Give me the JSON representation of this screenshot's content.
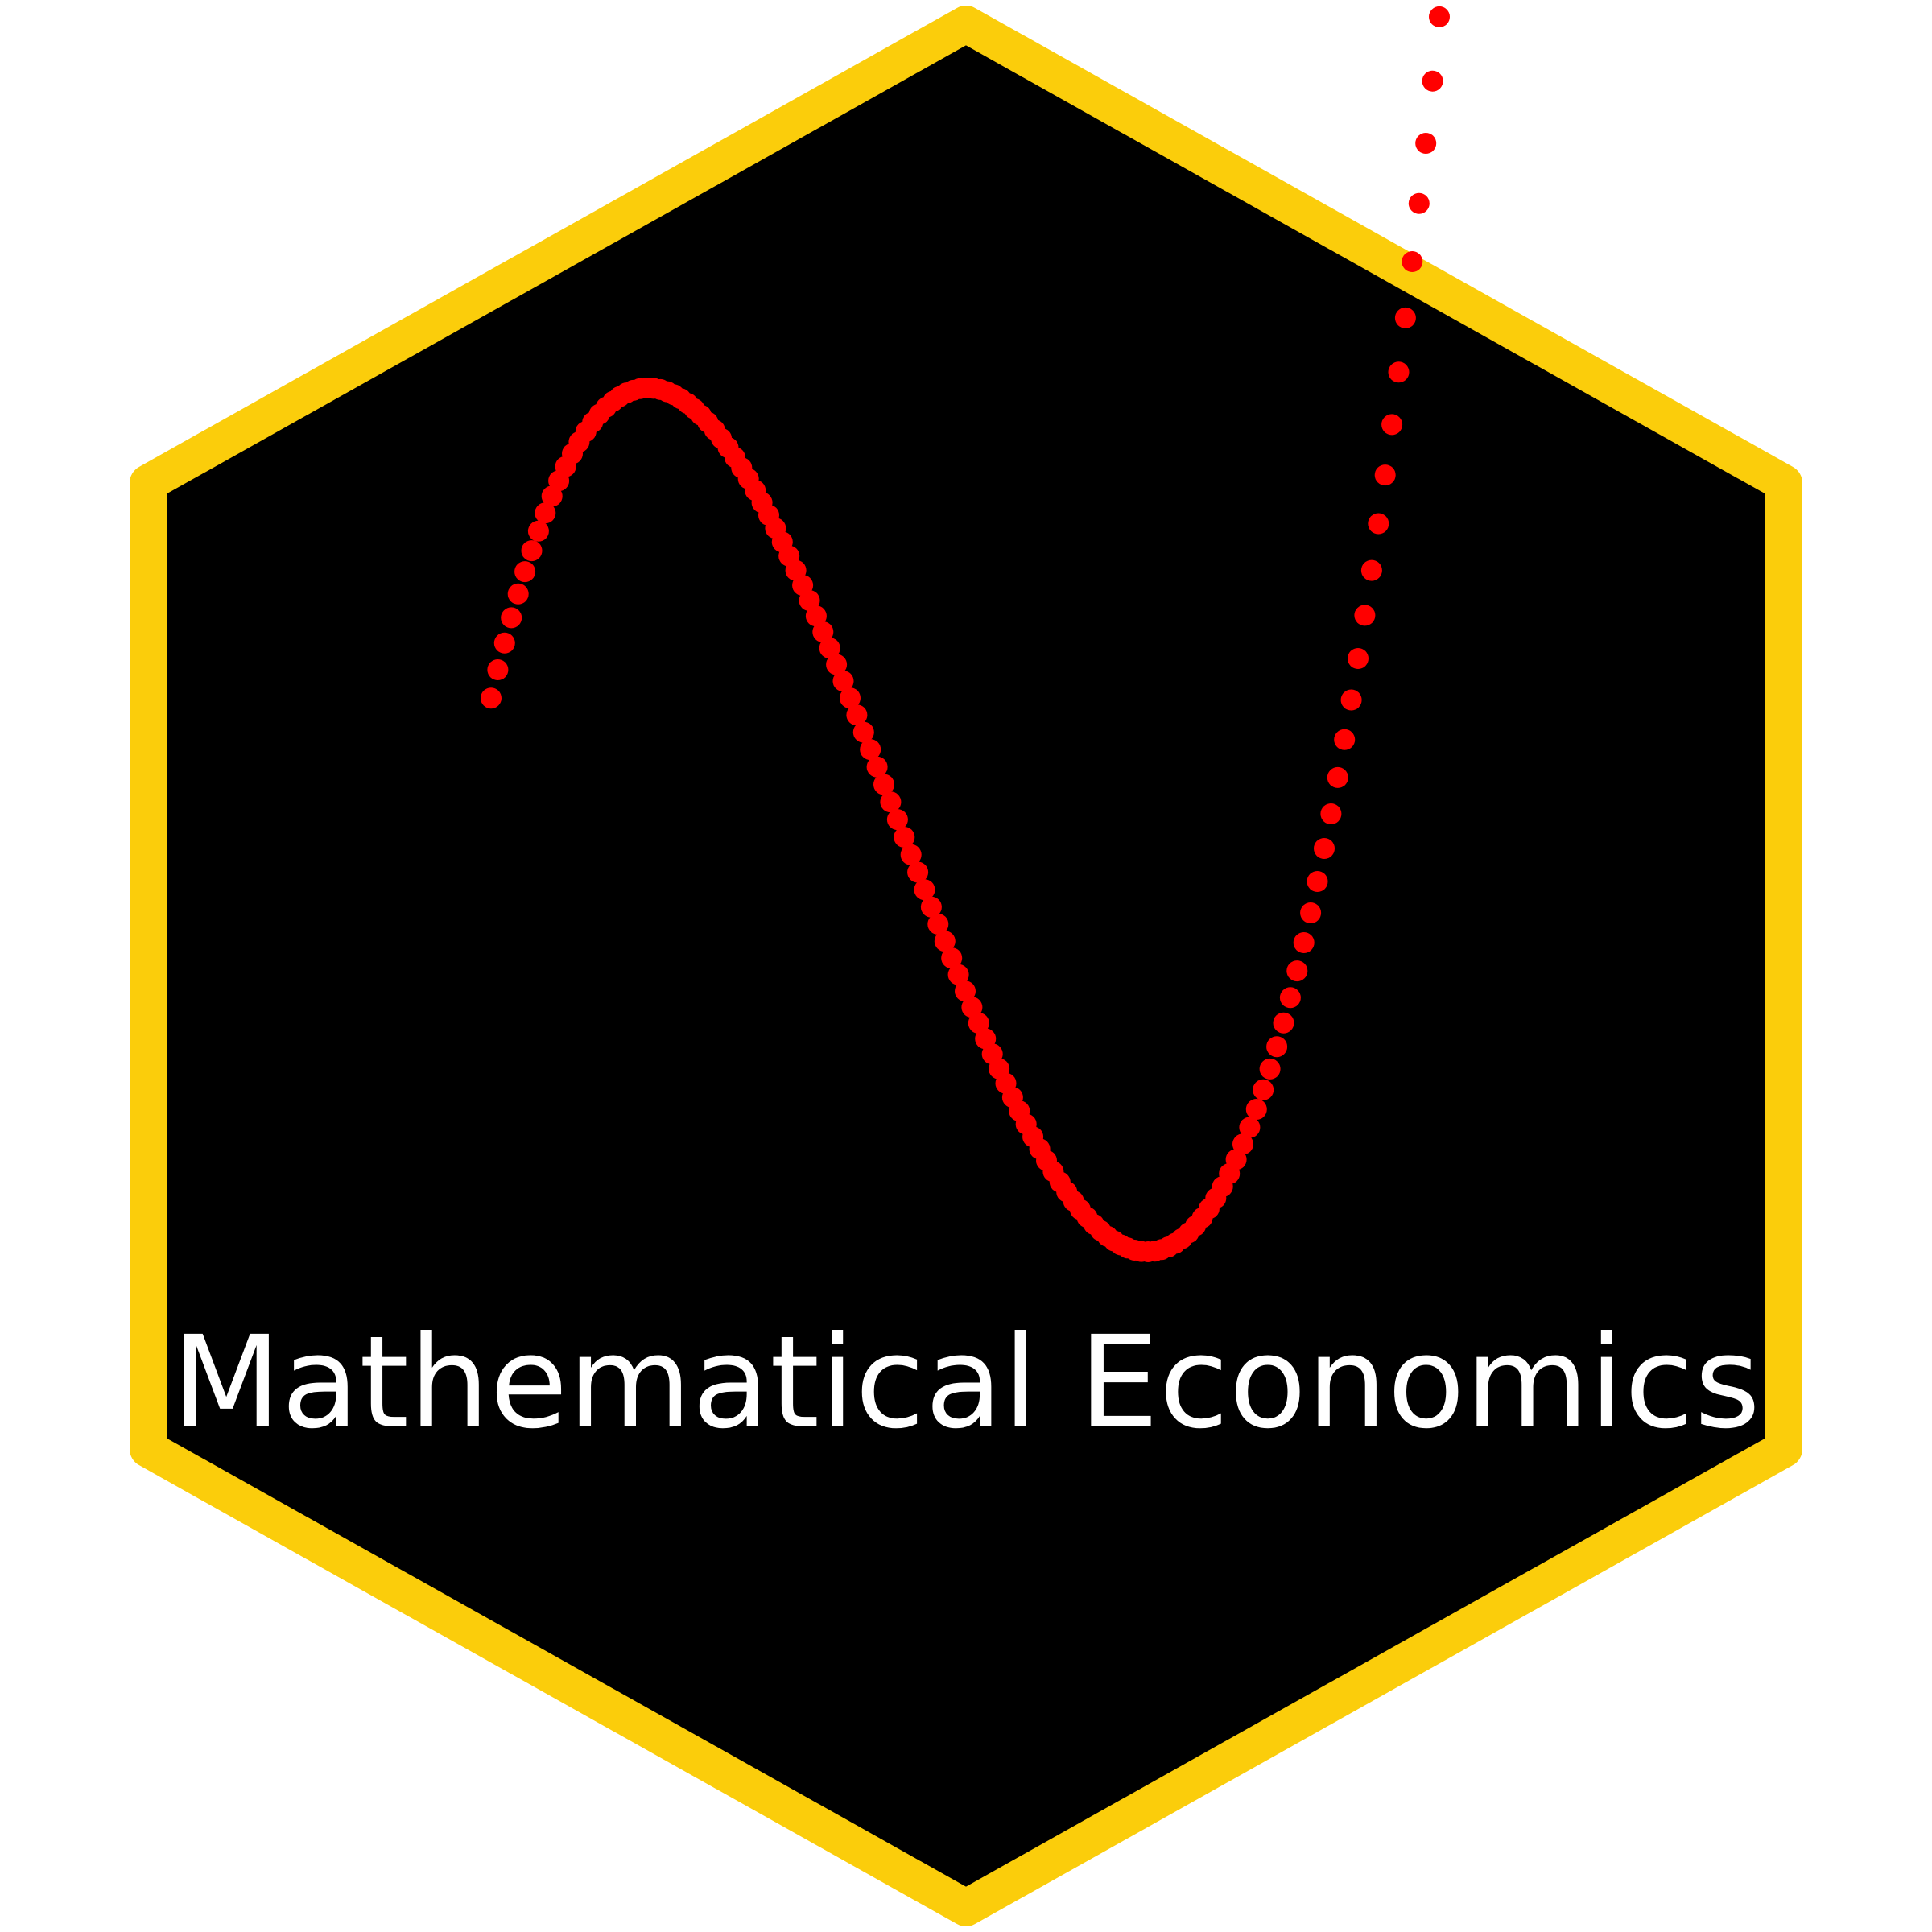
{
  "sticker": {
    "title": "Mathematical Economics",
    "colors": {
      "border": "#FBCD0B",
      "fill": "#000000",
      "curve": "#FF0000",
      "title": "#FFFFFF",
      "background": "#FFFFFF"
    }
  }
}
